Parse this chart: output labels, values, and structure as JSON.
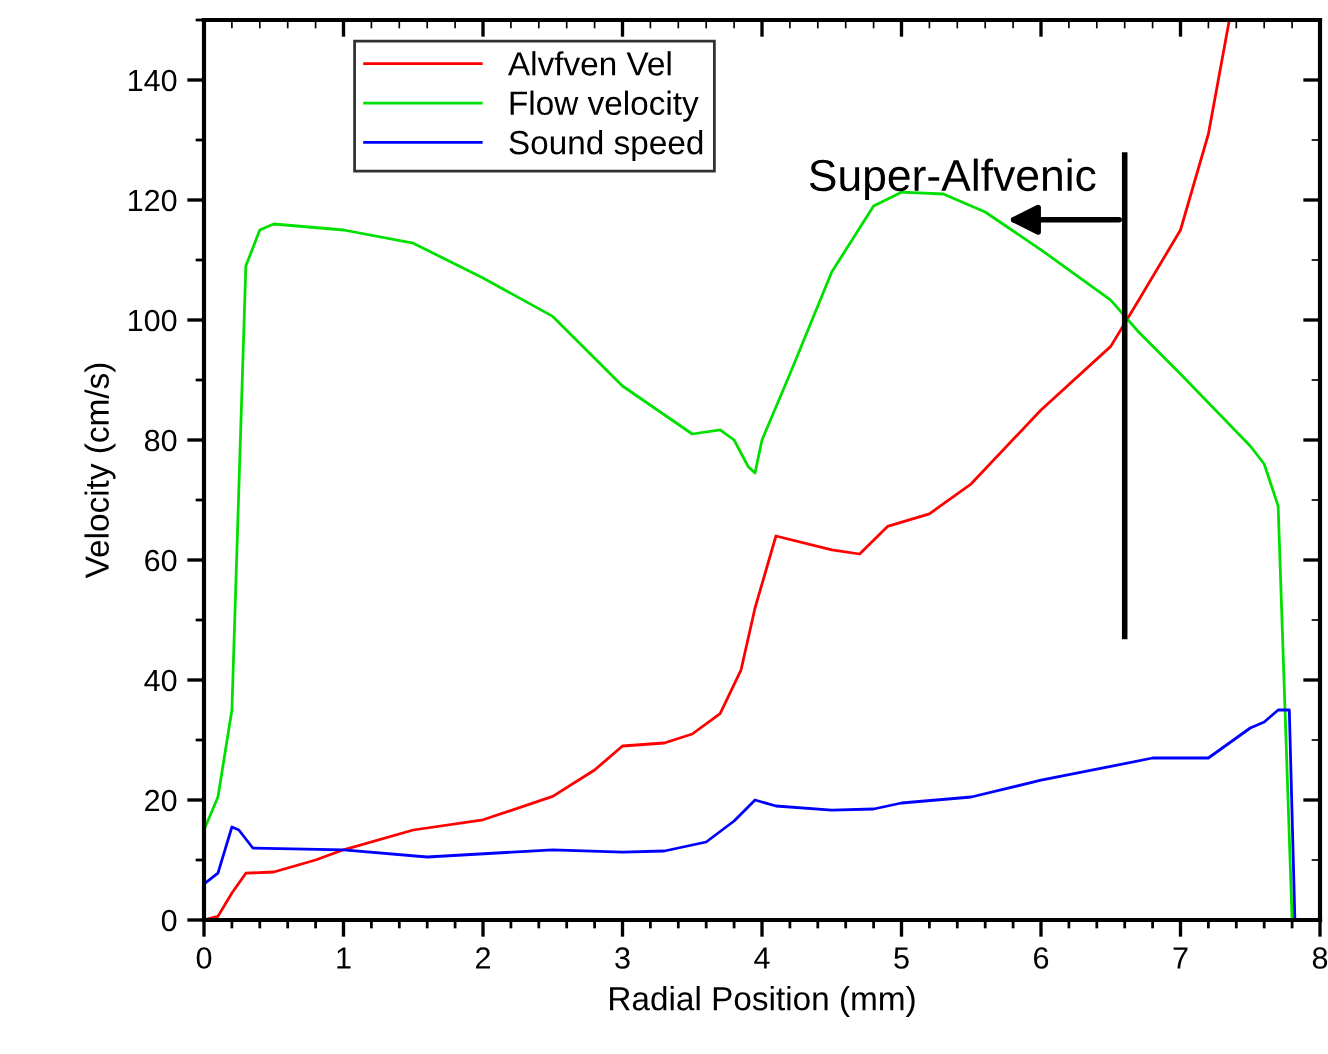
{
  "chart_data": {
    "type": "line",
    "xlabel": "Radial Position (mm)",
    "ylabel": "Velocity (cm/s)",
    "xlim": [
      0,
      8
    ],
    "ylim": [
      0,
      150
    ],
    "xticks": [
      0,
      1,
      2,
      3,
      4,
      5,
      6,
      7,
      8
    ],
    "yticks": [
      0,
      20,
      40,
      60,
      80,
      100,
      120,
      140
    ],
    "grid": false,
    "legend": "top left",
    "marker": "none",
    "line_style": "solid",
    "series": [
      {
        "name": "Alvfven Vel",
        "color": "#ff0000",
        "x": [
          0,
          0.1,
          0.2,
          0.3,
          0.5,
          0.8,
          1.0,
          1.5,
          2.0,
          2.5,
          2.8,
          3.0,
          3.3,
          3.5,
          3.7,
          3.85,
          3.95,
          4.1,
          4.5,
          4.7,
          4.9,
          5.2,
          5.5,
          6.0,
          6.5,
          6.7,
          7.0,
          7.2,
          7.35
        ],
        "values": [
          0,
          0.6,
          4.5,
          7.8,
          8,
          10,
          11.7,
          15,
          16.7,
          20.6,
          25,
          29,
          29.5,
          31,
          34.4,
          41.7,
          52,
          64,
          61.7,
          61,
          65.6,
          67.7,
          72.7,
          85,
          95.6,
          103.3,
          115,
          131,
          150
        ]
      },
      {
        "name": "Flow velocity",
        "color": "#00e000",
        "x": [
          0,
          0.1,
          0.2,
          0.3,
          0.4,
          0.5,
          1.0,
          1.5,
          2.0,
          2.5,
          3.0,
          3.5,
          3.7,
          3.8,
          3.9,
          3.95,
          4.0,
          4.2,
          4.5,
          4.8,
          5.0,
          5.3,
          5.6,
          6.0,
          6.5,
          6.7,
          7.0,
          7.5,
          7.6,
          7.7,
          7.8
        ],
        "values": [
          15,
          20.5,
          35,
          109,
          115,
          116,
          115,
          112.8,
          107,
          100.6,
          89,
          81,
          81.7,
          80,
          75.6,
          74.5,
          80,
          91,
          108,
          119,
          121.3,
          121,
          118,
          111.7,
          103.3,
          98,
          91,
          79,
          76,
          69,
          0
        ]
      },
      {
        "name": "Sound speed",
        "color": "#0000ff",
        "x": [
          0,
          0.1,
          0.2,
          0.25,
          0.35,
          1.0,
          1.6,
          2.5,
          3.0,
          3.3,
          3.6,
          3.8,
          3.95,
          4.1,
          4.5,
          4.8,
          5.0,
          5.5,
          6.0,
          6.5,
          6.8,
          7.0,
          7.2,
          7.5,
          7.6,
          7.7,
          7.78,
          7.82,
          8.0
        ],
        "values": [
          6,
          7.8,
          15.5,
          15,
          12,
          11.7,
          10.5,
          11.7,
          11.3,
          11.5,
          13,
          16.5,
          20,
          19,
          18.3,
          18.5,
          19.5,
          20.5,
          23.3,
          25.6,
          27,
          27,
          27,
          32,
          33,
          35,
          35,
          0,
          0
        ]
      }
    ],
    "annotations": [
      "Super-Alfvenic"
    ]
  }
}
